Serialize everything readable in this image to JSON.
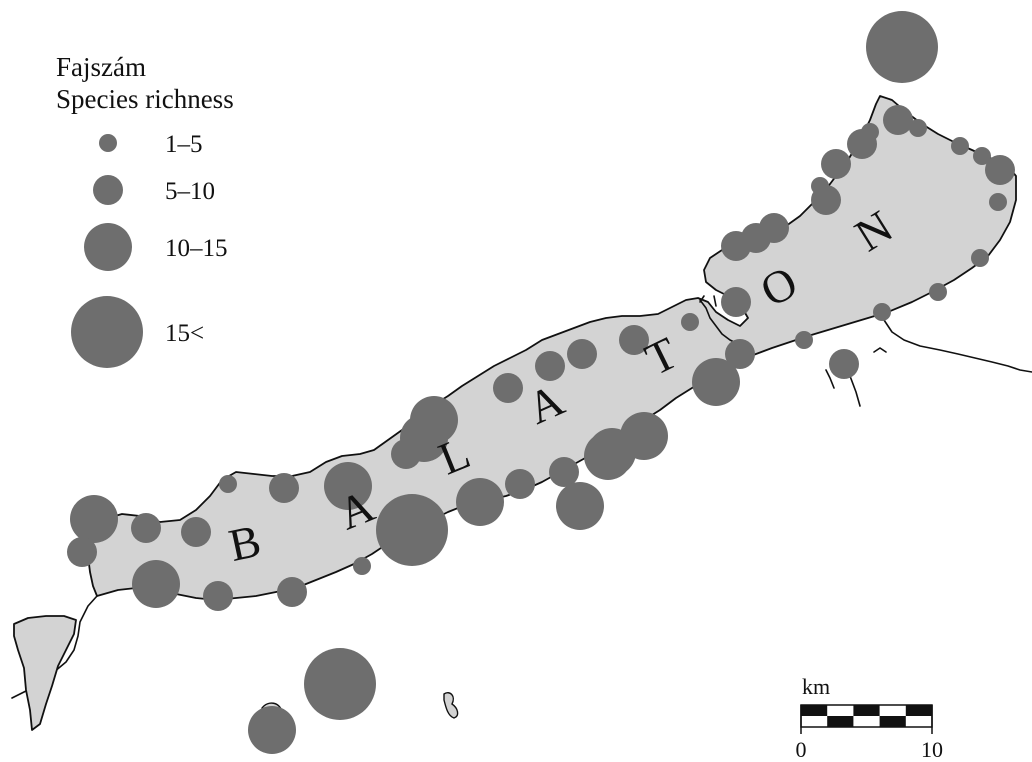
{
  "legend": {
    "title_hu": "Fajszám",
    "title_en": "Species richness",
    "classes": [
      {
        "label": "1–5"
      },
      {
        "label": "5–10"
      },
      {
        "label": "10–15"
      },
      {
        "label": "15<"
      }
    ]
  },
  "lake_label": {
    "letters": [
      "B",
      "A",
      "L",
      "A",
      "T",
      "O",
      "N"
    ]
  },
  "scale_bar": {
    "unit": "km",
    "min_label": "0",
    "max_label": "10"
  },
  "colors": {
    "site_circle": "#6e6e6e",
    "lake_fill": "#d3d3d3",
    "shoreline": "#111111"
  }
}
